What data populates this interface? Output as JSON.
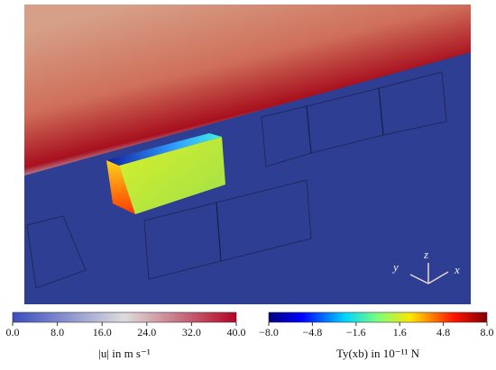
{
  "colorbars": [
    {
      "label": "|u| in m s⁻¹",
      "lim": [
        0,
        40
      ],
      "ticks": [
        {
          "value": 0,
          "label": "0.0"
        },
        {
          "value": 8,
          "label": "8.0"
        },
        {
          "value": 16,
          "label": "16.0"
        },
        {
          "value": 24,
          "label": "24.0"
        },
        {
          "value": 32,
          "label": "32.0"
        },
        {
          "value": 40,
          "label": "40.0"
        }
      ]
    },
    {
      "label": "Ty(xb) in 10⁻¹¹ N",
      "lim": [
        -8,
        8
      ],
      "ticks": [
        {
          "value": -8,
          "label": "−8.0"
        },
        {
          "value": -4.8,
          "label": "−4.8"
        },
        {
          "value": -1.6,
          "label": "−1.6"
        },
        {
          "value": 1.6,
          "label": "1.6"
        },
        {
          "value": 4.8,
          "label": "4.8"
        },
        {
          "value": 8,
          "label": "8.0"
        }
      ]
    }
  ],
  "axes": {
    "z": "z",
    "y": "y",
    "x": "x"
  }
}
